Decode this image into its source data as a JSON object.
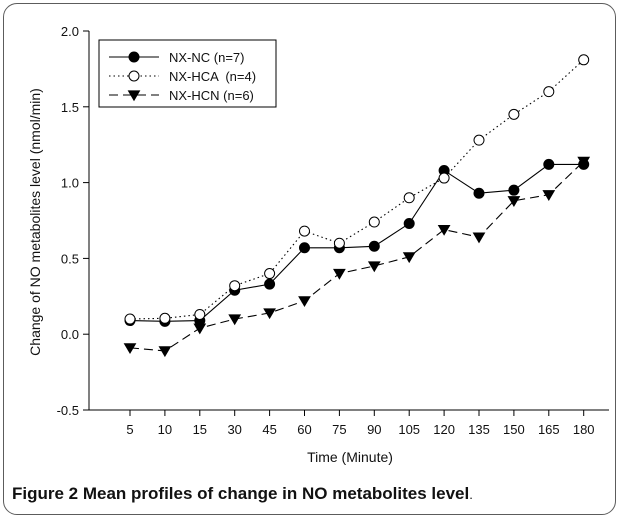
{
  "figure": {
    "caption_label": "Figure 2",
    "caption_text": "Mean profiles of change in NO metabolites level",
    "caption_end": "."
  },
  "chart_data": {
    "type": "line",
    "xlabel": "Time (Minute)",
    "ylabel": "Change of NO metabolites level (nmol/min)",
    "categories": [
      "5",
      "10",
      "15",
      "30",
      "45",
      "60",
      "75",
      "90",
      "105",
      "120",
      "135",
      "150",
      "165",
      "180"
    ],
    "y_ticks": [
      "-0.5",
      "0.0",
      "0.5",
      "1.0",
      "1.5",
      "2.0"
    ],
    "ylim": [
      -0.5,
      2.0
    ],
    "legend_position": "top-left",
    "grid": false,
    "series": [
      {
        "name": "NX-NC (n=7)",
        "marker": "filled-circle",
        "line_style": "solid",
        "color": "#000000",
        "values": [
          0.09,
          0.085,
          0.09,
          0.29,
          0.33,
          0.57,
          0.57,
          0.58,
          0.73,
          1.08,
          0.93,
          0.95,
          1.12,
          1.12
        ]
      },
      {
        "name": "NX-HCA  (n=4)",
        "marker": "open-circle",
        "line_style": "dotted",
        "color": "#000000",
        "values": [
          0.1,
          0.105,
          0.13,
          0.32,
          0.4,
          0.68,
          0.6,
          0.74,
          0.9,
          1.03,
          1.28,
          1.45,
          1.6,
          1.81
        ]
      },
      {
        "name": "NX-HCN (n=6)",
        "marker": "filled-triangle-down",
        "line_style": "dashed",
        "color": "#000000",
        "values": [
          -0.09,
          -0.11,
          0.04,
          0.1,
          0.14,
          0.22,
          0.4,
          0.45,
          0.51,
          0.69,
          0.64,
          0.88,
          0.92,
          1.14
        ]
      }
    ]
  }
}
